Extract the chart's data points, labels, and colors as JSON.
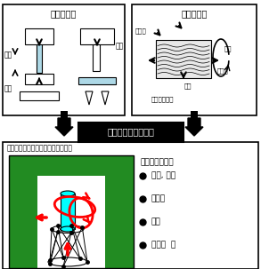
{
  "top_left_title": "市販試験機",
  "top_right_title": "現実の世界",
  "center_title": "複合三次元材料試験",
  "subtitle": "実用条件に近い材料評価方法を確立",
  "right_panel_title": "複合的荷重試験",
  "right_panel_items": [
    "圧縮, 引張",
    "ねじり",
    "曲げ",
    "せん断  等"
  ],
  "tl_label_hikibari": "引張",
  "tl_label_mage": "曲げ",
  "tl_label_assaku": "圧縮",
  "tr_label_sha": "斜圧縮",
  "tr_label_hiki": "引張",
  "tr_label_mage": "曲げ",
  "tr_label_nejiri": "ねじり",
  "tr_label_fukugo": "複合的な荷重",
  "green_color": "#228B22",
  "light_blue": "#ADD8E6",
  "wavy_bg": "#d8d8d8"
}
